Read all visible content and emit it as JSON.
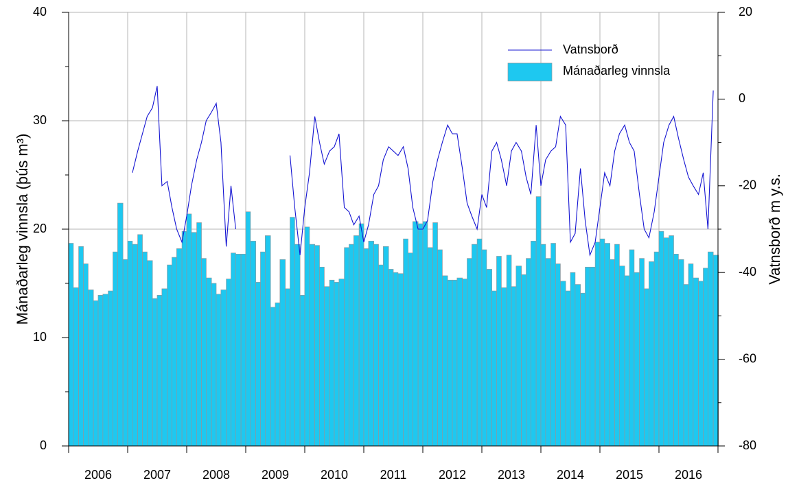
{
  "chart_data": {
    "type": "bar_line",
    "x": [
      2006.0,
      2006.08,
      2006.17,
      2006.25,
      2006.33,
      2006.42,
      2006.5,
      2006.58,
      2006.67,
      2006.75,
      2006.83,
      2006.92,
      2007.0,
      2007.08,
      2007.17,
      2007.25,
      2007.33,
      2007.42,
      2007.5,
      2007.58,
      2007.67,
      2007.75,
      2007.83,
      2007.92,
      2008.0,
      2008.08,
      2008.17,
      2008.25,
      2008.33,
      2008.42,
      2008.5,
      2008.58,
      2008.67,
      2008.75,
      2008.83,
      2008.92,
      2009.0,
      2009.08,
      2009.17,
      2009.25,
      2009.33,
      2009.42,
      2009.5,
      2009.58,
      2009.67,
      2009.75,
      2009.83,
      2009.92,
      2010.0,
      2010.08,
      2010.17,
      2010.25,
      2010.33,
      2010.42,
      2010.5,
      2010.58,
      2010.67,
      2010.75,
      2010.83,
      2010.92,
      2011.0,
      2011.08,
      2011.17,
      2011.25,
      2011.33,
      2011.42,
      2011.5,
      2011.58,
      2011.67,
      2011.75,
      2011.83,
      2011.92,
      2012.0,
      2012.08,
      2012.17,
      2012.25,
      2012.33,
      2012.42,
      2012.5,
      2012.58,
      2012.67,
      2012.75,
      2012.83,
      2012.92,
      2013.0,
      2013.08,
      2013.17,
      2013.25,
      2013.33,
      2013.42,
      2013.5,
      2013.58,
      2013.67,
      2013.75,
      2013.83,
      2013.92,
      2014.0,
      2014.08,
      2014.17,
      2014.25,
      2014.33,
      2014.42,
      2014.5,
      2014.58,
      2014.67,
      2014.75,
      2014.83,
      2014.92,
      2015.0,
      2015.08,
      2015.17,
      2015.25,
      2015.33,
      2015.42,
      2015.5,
      2015.58,
      2015.67,
      2015.75,
      2015.83,
      2015.92,
      2016.0,
      2016.08,
      2016.17,
      2016.25,
      2016.33,
      2016.42,
      2016.5,
      2016.58,
      2016.67,
      2016.75,
      2016.83,
      2016.92
    ],
    "series": [
      {
        "name": "Mánaðarleg vinnsla",
        "kind": "bar",
        "color": "#1ec8f0",
        "edge": "#8a9aa0",
        "values": [
          18.7,
          14.6,
          18.4,
          16.8,
          14.4,
          13.4,
          13.9,
          14.0,
          14.3,
          17.9,
          22.4,
          17.2,
          18.9,
          18.6,
          19.5,
          17.9,
          17.1,
          13.6,
          13.9,
          14.5,
          16.7,
          17.4,
          18.2,
          19.8,
          21.4,
          19.7,
          20.6,
          17.3,
          15.5,
          15.0,
          14.0,
          14.4,
          15.4,
          17.8,
          17.7,
          17.7,
          21.6,
          18.9,
          15.1,
          17.9,
          19.4,
          12.8,
          13.2,
          17.2,
          14.5,
          21.1,
          18.6,
          13.9,
          20.2,
          18.6,
          18.5,
          16.5,
          14.7,
          15.3,
          15.1,
          15.4,
          18.3,
          18.6,
          19.4,
          20.5,
          18.2,
          18.9,
          18.6,
          16.7,
          18.4,
          16.3,
          16.0,
          15.9,
          19.1,
          17.8,
          20.7,
          20.5,
          20.7,
          18.3,
          20.6,
          18.1,
          15.7,
          15.3,
          15.3,
          15.5,
          15.4,
          17.3,
          18.6,
          19.1,
          18.1,
          16.3,
          14.3,
          17.5,
          14.6,
          17.6,
          14.7,
          16.6,
          15.8,
          17.3,
          18.9,
          23.0,
          18.6,
          17.3,
          18.7,
          16.8,
          15.2,
          14.3,
          16.0,
          14.9,
          14.1,
          16.5,
          16.5,
          18.8,
          19.1,
          18.7,
          17.2,
          18.6,
          16.6,
          15.7,
          18.1,
          16.0,
          17.3,
          14.5,
          17.0,
          17.9,
          19.8,
          19.2,
          19.4,
          17.7,
          17.2,
          14.9,
          16.8,
          15.5,
          15.2,
          16.4,
          17.9,
          17.6
        ]
      },
      {
        "name": "Vatnsborð",
        "kind": "line",
        "axis": "y2",
        "color": "#1414d2",
        "values": [
          null,
          null,
          null,
          null,
          null,
          null,
          null,
          null,
          null,
          null,
          null,
          null,
          null,
          -17,
          -12,
          -8,
          -4,
          -2,
          3,
          -20,
          -19,
          -25,
          -30,
          -33,
          -27,
          -20,
          -14,
          -10,
          -5,
          -3,
          -1,
          -10,
          -34,
          -20,
          -30,
          null,
          null,
          null,
          null,
          null,
          null,
          null,
          null,
          null,
          null,
          -13,
          -25,
          -36,
          -25,
          -17,
          -4,
          -10,
          -15,
          -12,
          -11,
          -8,
          -25,
          -26,
          -29,
          -27,
          -33,
          -29,
          -22,
          -20,
          -14,
          -11,
          -12,
          -13,
          -11,
          -16,
          -25,
          -30,
          -30,
          -28,
          -19,
          -14,
          -10,
          -6,
          -8,
          -8,
          -16,
          -24,
          -27,
          -30,
          -22,
          -25,
          -12,
          -10,
          -14,
          -20,
          -12,
          -10,
          -12,
          -18,
          -22,
          -6,
          -20,
          -14,
          -12,
          -11,
          -4,
          -6,
          -33,
          -31,
          -16,
          -28,
          -36,
          -33,
          -25,
          -17,
          -20,
          -12,
          -8,
          -6,
          -10,
          -12,
          -22,
          -30,
          -32,
          -26,
          -18,
          -10,
          -6,
          -4,
          -9,
          -14,
          -18,
          -20,
          -22,
          -17,
          -30,
          2
        ]
      }
    ],
    "xlim": [
      2006,
      2017
    ],
    "xticks": [
      2006,
      2007,
      2008,
      2009,
      2010,
      2011,
      2012,
      2013,
      2014,
      2015,
      2016,
      2017
    ],
    "xtick_labels": [
      {
        "value": 2006.5,
        "label": "2006"
      },
      {
        "value": 2007.5,
        "label": "2007"
      },
      {
        "value": 2008.5,
        "label": "2008"
      },
      {
        "value": 2009.5,
        "label": "2009"
      },
      {
        "value": 2010.5,
        "label": "2010"
      },
      {
        "value": 2011.5,
        "label": "2011"
      },
      {
        "value": 2012.5,
        "label": "2012"
      },
      {
        "value": 2013.5,
        "label": "2013"
      },
      {
        "value": 2014.5,
        "label": "2014"
      },
      {
        "value": 2015.5,
        "label": "2015"
      },
      {
        "value": 2016.5,
        "label": "2016"
      }
    ],
    "ylim": [
      0,
      40
    ],
    "yticks": [
      0,
      10,
      20,
      30,
      40
    ],
    "yminor": [
      5,
      15,
      25,
      35
    ],
    "y2lim": [
      -80,
      20
    ],
    "y2ticks": [
      -80,
      -60,
      -40,
      -20,
      0,
      20
    ],
    "y2minor": [
      -70,
      -50,
      -30,
      -10,
      10
    ],
    "ylabel": "Mánaðarleg vinnsla (þús m³)",
    "y2label": "Vatnsborð m y.s.",
    "grid": true,
    "legend": "upper right"
  }
}
